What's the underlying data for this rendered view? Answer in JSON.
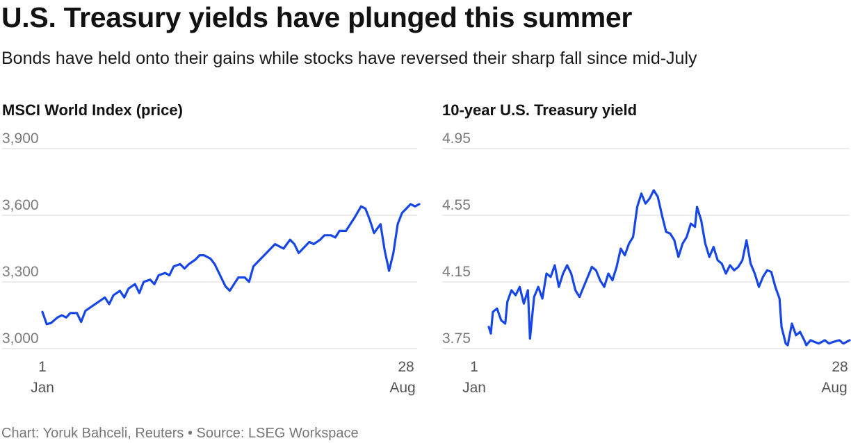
{
  "title": "U.S. Treasury yields have plunged this summer",
  "subtitle": "Bonds have held onto their gains while stocks have reversed their sharp fall since mid-July",
  "footer": {
    "credit": "Chart: Yoruk Bahceli, Reuters",
    "separator": "•",
    "source": "Source: LSEG Workspace"
  },
  "colors": {
    "line": "#1646e8"
  },
  "chart_data": [
    {
      "type": "line",
      "title": "MSCI World Index (price)",
      "xlabel": "",
      "ylabel": "",
      "x_start_label": {
        "day": "1",
        "month": "Jan"
      },
      "x_end_label": {
        "day": "28",
        "month": "Aug"
      },
      "yticks": [
        3900,
        3600,
        3300,
        3000
      ],
      "ytick_labels": [
        "3,900",
        "3,600",
        "3,300",
        "3,000"
      ],
      "ylim": [
        2950,
        3900
      ],
      "n_points": 168,
      "anchors": [
        [
          0,
          3165
        ],
        [
          2,
          3110
        ],
        [
          4,
          3115
        ],
        [
          7,
          3140
        ],
        [
          9,
          3150
        ],
        [
          11,
          3140
        ],
        [
          13,
          3160
        ],
        [
          16,
          3160
        ],
        [
          18,
          3120
        ],
        [
          20,
          3170
        ],
        [
          23,
          3190
        ],
        [
          26,
          3210
        ],
        [
          29,
          3230
        ],
        [
          31,
          3200
        ],
        [
          33,
          3240
        ],
        [
          36,
          3260
        ],
        [
          38,
          3230
        ],
        [
          40,
          3270
        ],
        [
          43,
          3290
        ],
        [
          45,
          3250
        ],
        [
          47,
          3300
        ],
        [
          50,
          3310
        ],
        [
          52,
          3290
        ],
        [
          54,
          3330
        ],
        [
          57,
          3340
        ],
        [
          59,
          3330
        ],
        [
          61,
          3370
        ],
        [
          64,
          3380
        ],
        [
          66,
          3360
        ],
        [
          68,
          3380
        ],
        [
          71,
          3400
        ],
        [
          73,
          3420
        ],
        [
          75,
          3420
        ],
        [
          78,
          3405
        ],
        [
          80,
          3380
        ],
        [
          82,
          3340
        ],
        [
          85,
          3280
        ],
        [
          87,
          3260
        ],
        [
          89,
          3290
        ],
        [
          91,
          3320
        ],
        [
          94,
          3320
        ],
        [
          96,
          3300
        ],
        [
          98,
          3370
        ],
        [
          101,
          3400
        ],
        [
          103,
          3420
        ],
        [
          105,
          3440
        ],
        [
          108,
          3470
        ],
        [
          110,
          3460
        ],
        [
          112,
          3450
        ],
        [
          115,
          3490
        ],
        [
          117,
          3470
        ],
        [
          119,
          3430
        ],
        [
          122,
          3460
        ],
        [
          124,
          3480
        ],
        [
          126,
          3470
        ],
        [
          129,
          3490
        ],
        [
          131,
          3510
        ],
        [
          134,
          3510
        ],
        [
          136,
          3500
        ],
        [
          138,
          3530
        ],
        [
          141,
          3530
        ],
        [
          143,
          3560
        ],
        [
          145,
          3590
        ],
        [
          148,
          3640
        ],
        [
          150,
          3630
        ],
        [
          152,
          3580
        ],
        [
          154,
          3520
        ],
        [
          157,
          3560
        ],
        [
          159,
          3440
        ],
        [
          161,
          3350
        ],
        [
          163,
          3430
        ],
        [
          165,
          3560
        ],
        [
          167,
          3610
        ],
        [
          169,
          3630
        ],
        [
          171,
          3650
        ],
        [
          173,
          3640
        ],
        [
          175,
          3650
        ]
      ]
    },
    {
      "type": "line",
      "title": "10-year U.S. Treasury yield",
      "xlabel": "",
      "ylabel": "",
      "x_start_label": {
        "day": "1",
        "month": "Jan"
      },
      "x_end_label": {
        "day": "28",
        "month": "Aug"
      },
      "yticks": [
        4.95,
        4.55,
        4.15,
        3.75
      ],
      "ytick_labels": [
        "4.95",
        "4.55",
        "4.15",
        "3.75"
      ],
      "ylim": [
        3.68,
        4.95
      ],
      "n_points": 168,
      "anchors": [
        [
          0,
          3.88
        ],
        [
          1,
          3.84
        ],
        [
          2,
          3.97
        ],
        [
          4,
          3.99
        ],
        [
          6,
          3.92
        ],
        [
          8,
          3.9
        ],
        [
          9,
          4.03
        ],
        [
          11,
          4.1
        ],
        [
          13,
          4.07
        ],
        [
          15,
          4.12
        ],
        [
          17,
          4.02
        ],
        [
          19,
          4.1
        ],
        [
          20,
          3.81
        ],
        [
          22,
          4.06
        ],
        [
          24,
          4.12
        ],
        [
          26,
          4.05
        ],
        [
          28,
          4.2
        ],
        [
          30,
          4.18
        ],
        [
          32,
          4.25
        ],
        [
          34,
          4.12
        ],
        [
          36,
          4.2
        ],
        [
          38,
          4.25
        ],
        [
          40,
          4.2
        ],
        [
          42,
          4.1
        ],
        [
          44,
          4.06
        ],
        [
          46,
          4.12
        ],
        [
          48,
          4.18
        ],
        [
          50,
          4.24
        ],
        [
          52,
          4.22
        ],
        [
          54,
          4.16
        ],
        [
          56,
          4.12
        ],
        [
          58,
          4.2
        ],
        [
          60,
          4.16
        ],
        [
          62,
          4.24
        ],
        [
          64,
          4.35
        ],
        [
          66,
          4.31
        ],
        [
          68,
          4.38
        ],
        [
          70,
          4.42
        ],
        [
          72,
          4.6
        ],
        [
          74,
          4.68
        ],
        [
          76,
          4.62
        ],
        [
          78,
          4.65
        ],
        [
          80,
          4.7
        ],
        [
          82,
          4.66
        ],
        [
          84,
          4.55
        ],
        [
          86,
          4.45
        ],
        [
          88,
          4.44
        ],
        [
          90,
          4.4
        ],
        [
          92,
          4.3
        ],
        [
          94,
          4.38
        ],
        [
          96,
          4.42
        ],
        [
          98,
          4.5
        ],
        [
          100,
          4.48
        ],
        [
          101,
          4.6
        ],
        [
          103,
          4.52
        ],
        [
          105,
          4.38
        ],
        [
          107,
          4.3
        ],
        [
          109,
          4.36
        ],
        [
          111,
          4.28
        ],
        [
          113,
          4.26
        ],
        [
          115,
          4.2
        ],
        [
          117,
          4.25
        ],
        [
          119,
          4.22
        ],
        [
          121,
          4.24
        ],
        [
          123,
          4.28
        ],
        [
          125,
          4.4
        ],
        [
          127,
          4.26
        ],
        [
          129,
          4.2
        ],
        [
          131,
          4.12
        ],
        [
          133,
          4.18
        ],
        [
          135,
          4.22
        ],
        [
          137,
          4.21
        ],
        [
          139,
          4.12
        ],
        [
          141,
          4.05
        ],
        [
          142,
          3.88
        ],
        [
          144,
          3.78
        ],
        [
          145,
          3.77
        ],
        [
          147,
          3.9
        ],
        [
          149,
          3.83
        ],
        [
          151,
          3.85
        ],
        [
          153,
          3.8
        ],
        [
          154,
          3.77
        ],
        [
          156,
          3.8
        ],
        [
          158,
          3.79
        ],
        [
          160,
          3.78
        ],
        [
          163,
          3.8
        ],
        [
          165,
          3.78
        ],
        [
          167,
          3.79
        ],
        [
          170,
          3.8
        ],
        [
          172,
          3.78
        ],
        [
          175,
          3.8
        ]
      ]
    }
  ]
}
